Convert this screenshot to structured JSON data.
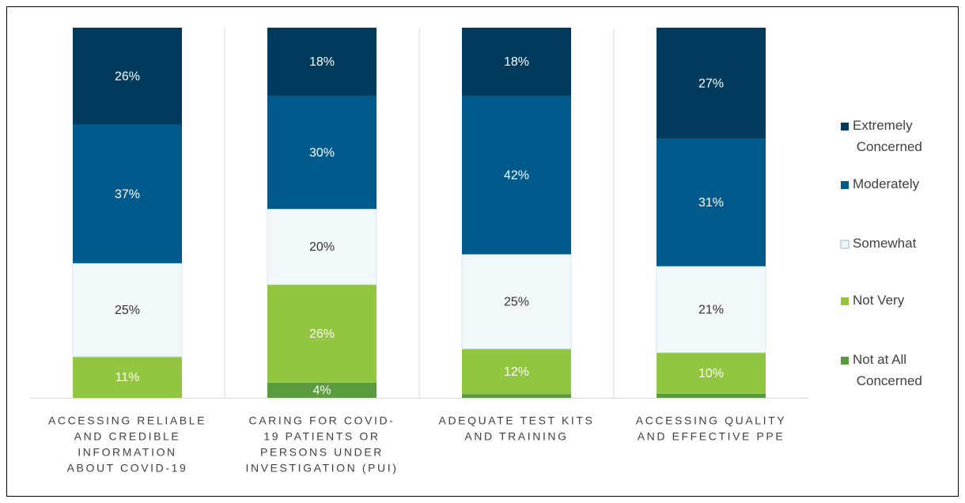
{
  "chart_data": {
    "type": "bar",
    "stacked": true,
    "percent_stacked": true,
    "categories": [
      [
        "ACCESSING RELIABLE",
        "AND CREDIBLE",
        "INFORMATION",
        "ABOUT COVID-19"
      ],
      [
        "CARING FOR COVID-",
        "19  PATIENTS OR",
        "PERSONS UNDER",
        "INVESTIGATION (PUI)"
      ],
      [
        "ADEQUATE TEST KITS",
        "AND TRAINING"
      ],
      [
        "ACCESSING QUALITY",
        "AND EFFECTIVE PPE"
      ]
    ],
    "series": [
      {
        "name": "Not at All Concerned",
        "color": "#5b9b3f",
        "text_color": "#ffffff",
        "values": [
          0,
          4,
          1,
          1
        ],
        "value_labels": [
          null,
          "4%",
          null,
          null
        ]
      },
      {
        "name": "Not Very",
        "color": "#93c640",
        "text_color": "#ffffff",
        "values": [
          11,
          26,
          12,
          10
        ],
        "value_labels": [
          "11%",
          "26%",
          "12%",
          "10%"
        ]
      },
      {
        "name": "Somewhat",
        "color": "#f1f8fc",
        "text_color": "#333333",
        "values": [
          25,
          20,
          25,
          21
        ],
        "value_labels": [
          "25%",
          "20%",
          "25%",
          "21%"
        ]
      },
      {
        "name": "Moderately",
        "color": "#005a8b",
        "text_color": "#ffffff",
        "values": [
          37,
          30,
          42,
          31
        ],
        "value_labels": [
          "37%",
          "30%",
          "42%",
          "31%"
        ]
      },
      {
        "name": "Extremely Concerned",
        "color": "#003a5d",
        "text_color": "#ffffff",
        "values": [
          26,
          18,
          18,
          27
        ],
        "value_labels": [
          "26%",
          "18%",
          "18%",
          "27%"
        ]
      }
    ],
    "legend": "right"
  }
}
